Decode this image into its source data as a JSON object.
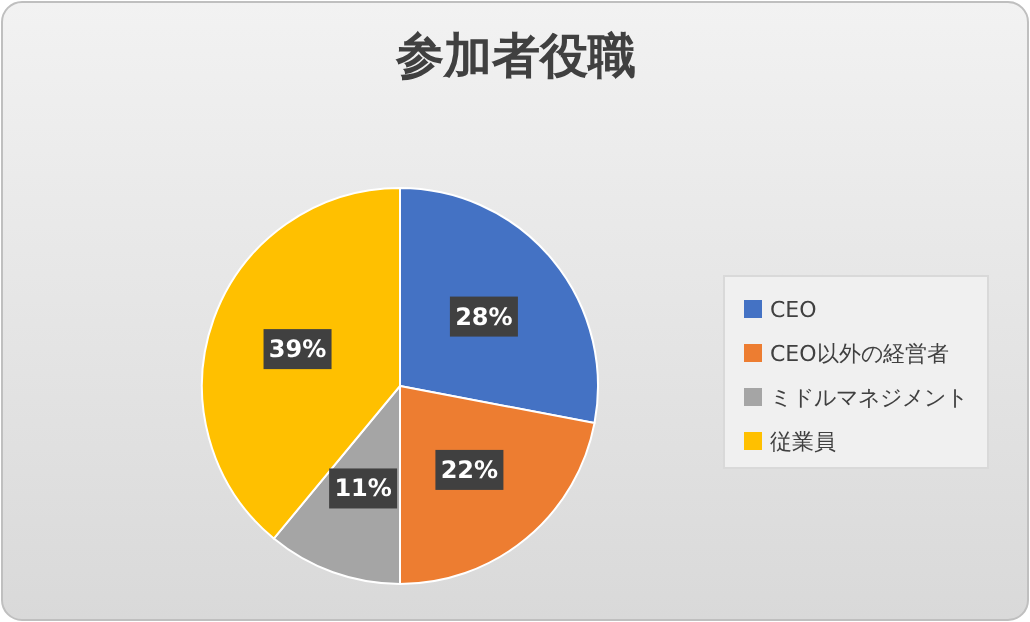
{
  "chart_data": {
    "type": "pie",
    "title": "参加者役職",
    "categories": [
      "CEO",
      "CEO以外の経営者",
      "ミドルマネジメント",
      "従業員"
    ],
    "values": [
      28,
      22,
      11,
      39
    ],
    "colors": [
      "#4472c4",
      "#ed7d31",
      "#a5a5a5",
      "#ffc000"
    ],
    "value_labels": [
      "28%",
      "22%",
      "11%",
      "39%"
    ],
    "legend": "right"
  }
}
